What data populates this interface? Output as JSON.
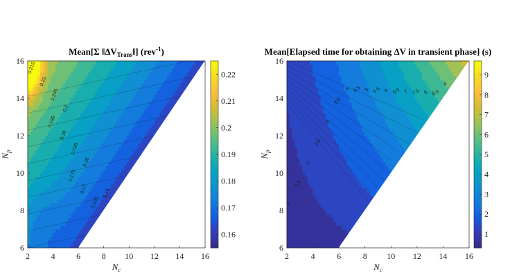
{
  "chart_data": [
    {
      "type": "contour",
      "title": "Mean[Σ ‖ΔV_Trans‖] (rev⁻¹)",
      "title_parts": {
        "pre": "Mean[Σ ‖ΔV",
        "sub": "Trans",
        "mid": "‖] (rev",
        "sup": "-1",
        "post": ")"
      },
      "xlabel": "N_c",
      "ylabel": "N_p",
      "xlim": [
        2,
        16
      ],
      "ylim": [
        6,
        16
      ],
      "xticks": [
        "2",
        "4",
        "6",
        "8",
        "10",
        "12",
        "14",
        "16"
      ],
      "yticks": [
        "6",
        "8",
        "10",
        "12",
        "14",
        "16"
      ],
      "colorbar": {
        "min": 0.155,
        "max": 0.225,
        "ticks": [
          "0.16",
          "0.17",
          "0.18",
          "0.19",
          "0.2",
          "0.21",
          "0.22"
        ]
      },
      "contour_labels": [
        "0.215",
        "0.21",
        "0.205",
        "0.2",
        "0.195",
        "0.19",
        "0.185",
        "0.18",
        "0.175",
        "0.17",
        "0.165",
        "0.16"
      ],
      "grid": true,
      "colormap": "parula",
      "domain": "N_p >= N_c"
    },
    {
      "type": "contour",
      "title": "Mean[Elapsed time for obtaining ΔV in transient phase] (s)",
      "xlabel": "N_c",
      "ylabel": "N_p",
      "xlim": [
        2,
        16
      ],
      "ylim": [
        6,
        16
      ],
      "xticks": [
        "2",
        "4",
        "6",
        "8",
        "10",
        "12",
        "14",
        "16"
      ],
      "yticks": [
        "6",
        "8",
        "10",
        "12",
        "14",
        "16"
      ],
      "colorbar": {
        "min": 0.3,
        "max": 9.7,
        "ticks": [
          "1",
          "2",
          "3",
          "4",
          "5",
          "6",
          "7",
          "8",
          "9"
        ]
      },
      "contour_labels": [
        "1",
        "1.5",
        "2",
        "2.5",
        "3",
        "3.5",
        "4",
        "4.5",
        "5",
        "5.5",
        "6",
        "6.5",
        "7",
        "7.5",
        "8",
        "8.5",
        "9"
      ],
      "grid": true,
      "colormap": "parula",
      "domain": "N_p >= N_c"
    }
  ]
}
